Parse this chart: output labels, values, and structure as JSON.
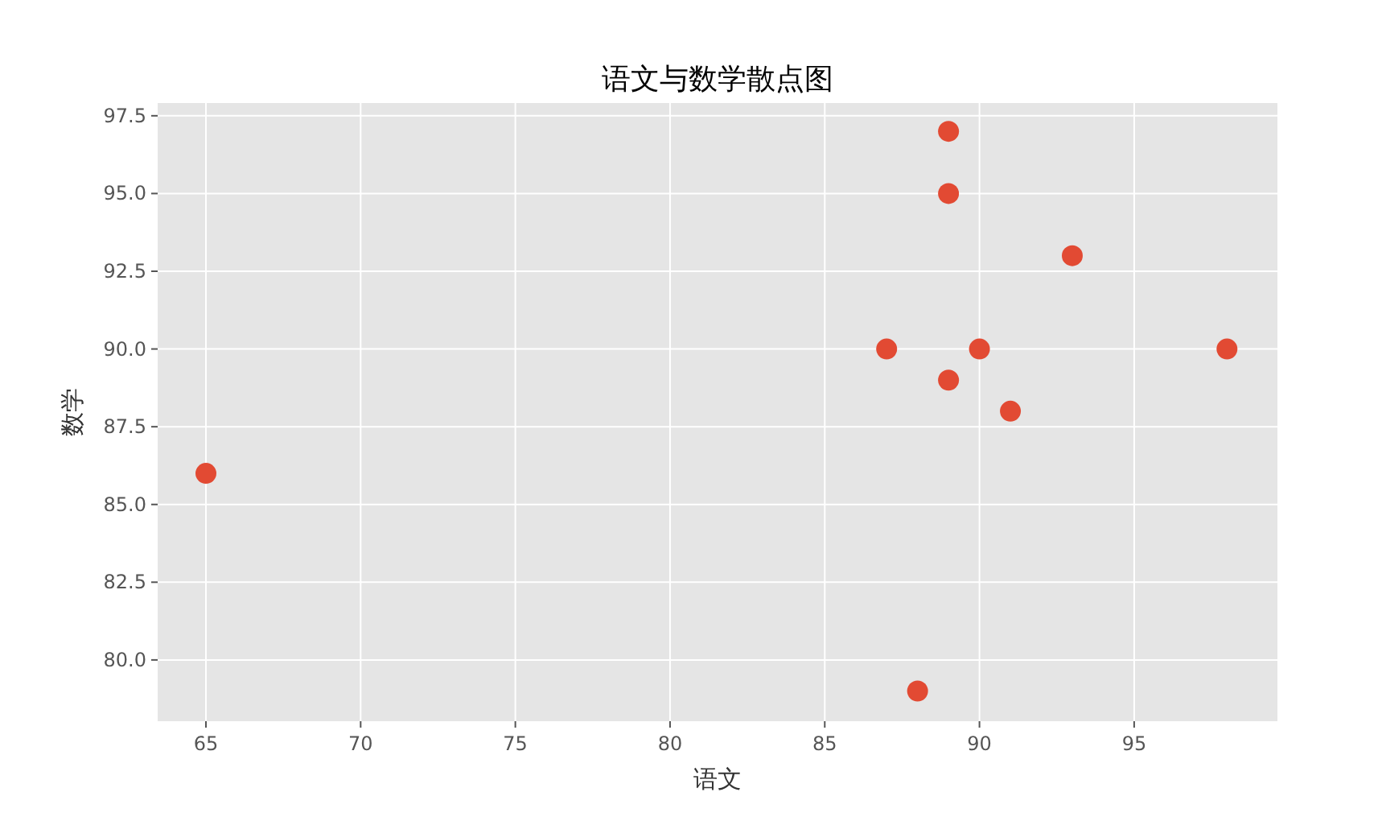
{
  "chart_data": {
    "type": "scatter",
    "title": "语文与数学散点图",
    "xlabel": "语文",
    "ylabel": "数学",
    "x": [
      89,
      89,
      93,
      87,
      90,
      98,
      89,
      91,
      65,
      88
    ],
    "values": [
      97,
      95,
      93,
      90,
      90,
      90,
      89,
      88,
      86,
      79
    ],
    "color": "#e24a33",
    "marker": "circle",
    "grid": true,
    "xlim": [
      63.44,
      99.63
    ],
    "ylim": [
      78.03,
      97.91
    ],
    "xticks": [
      65,
      70,
      75,
      80,
      85,
      90,
      95
    ],
    "yticks": [
      {
        "value": 80,
        "label": "80.0"
      },
      {
        "value": 82.5,
        "label": "82.5"
      },
      {
        "value": 85,
        "label": "85.0"
      },
      {
        "value": 87.5,
        "label": "87.5"
      },
      {
        "value": 90,
        "label": "90.0"
      },
      {
        "value": 92.5,
        "label": "92.5"
      },
      {
        "value": 95,
        "label": "95.0"
      },
      {
        "value": 97.5,
        "label": "97.5"
      }
    ]
  }
}
